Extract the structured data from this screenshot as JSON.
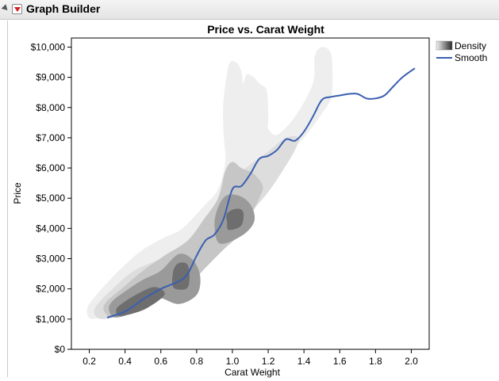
{
  "window": {
    "title": "Graph Builder"
  },
  "chart_data": {
    "type": "scatter",
    "title": "Price vs. Carat Weight",
    "xlabel": "Carat Weight",
    "ylabel": "Price",
    "xlim": [
      0.1,
      2.1
    ],
    "ylim": [
      0,
      10300
    ],
    "x_ticks": [
      "0.2",
      "0.4",
      "0.6",
      "0.8",
      "1.0",
      "1.2",
      "1.4",
      "1.6",
      "1.8",
      "2.0"
    ],
    "y_ticks": [
      "$0",
      "$1,000",
      "$2,000",
      "$3,000",
      "$4,000",
      "$5,000",
      "$6,000",
      "$7,000",
      "$8,000",
      "$9,000",
      "$10,000"
    ],
    "legend": {
      "placement": "right",
      "density_label": "Density",
      "smooth_label": "Smooth"
    },
    "colors": {
      "smooth": "#3a5fb0",
      "density_levels": [
        "#eeeeee",
        "#dddddd",
        "#c6c6c6",
        "#9a9a9a",
        "#6e6e6e",
        "#3a3a3a"
      ]
    },
    "series": [
      {
        "name": "Smooth",
        "kind": "line",
        "x": [
          0.3,
          0.4,
          0.5,
          0.6,
          0.7,
          0.75,
          0.8,
          0.85,
          0.9,
          0.95,
          1.0,
          1.05,
          1.1,
          1.15,
          1.2,
          1.25,
          1.3,
          1.35,
          1.4,
          1.45,
          1.5,
          1.55,
          1.6,
          1.65,
          1.7,
          1.75,
          1.8,
          1.85,
          1.9,
          1.95,
          2.02
        ],
        "y": [
          1050,
          1250,
          1650,
          2000,
          2250,
          2500,
          3100,
          3600,
          3800,
          4300,
          5300,
          5400,
          5800,
          6300,
          6400,
          6600,
          6950,
          6900,
          7200,
          7700,
          8250,
          8350,
          8400,
          8450,
          8450,
          8300,
          8300,
          8400,
          8700,
          9000,
          9300
        ]
      },
      {
        "name": "Density",
        "kind": "contour",
        "levels": [
          {
            "level": 1,
            "outline": [
              [
                0.22,
                1000
              ],
              [
                0.32,
                1150
              ],
              [
                0.42,
                1500
              ],
              [
                0.55,
                2150
              ],
              [
                0.7,
                2800
              ],
              [
                0.85,
                3700
              ],
              [
                1.0,
                4800
              ],
              [
                1.1,
                5400
              ],
              [
                1.2,
                6000
              ],
              [
                1.3,
                6500
              ],
              [
                1.4,
                7000
              ],
              [
                1.5,
                7800
              ],
              [
                1.55,
                8300
              ],
              [
                1.56,
                9000
              ],
              [
                1.55,
                9800
              ],
              [
                1.5,
                10000
              ],
              [
                1.46,
                9700
              ],
              [
                1.45,
                8800
              ],
              [
                1.35,
                7700
              ],
              [
                1.25,
                7100
              ],
              [
                1.2,
                7300
              ],
              [
                1.2,
                7500
              ],
              [
                1.2,
                7950
              ],
              [
                1.19,
                8600
              ],
              [
                1.15,
                8800
              ],
              [
                1.12,
                9000
              ],
              [
                1.08,
                9100
              ],
              [
                1.06,
                8800
              ],
              [
                1.05,
                9200
              ],
              [
                1.02,
                9500
              ],
              [
                0.98,
                9400
              ],
              [
                0.95,
                8200
              ],
              [
                0.95,
                7200
              ],
              [
                0.96,
                6200
              ],
              [
                0.92,
                5300
              ],
              [
                0.85,
                4800
              ],
              [
                0.72,
                4000
              ],
              [
                0.62,
                3700
              ],
              [
                0.5,
                3300
              ],
              [
                0.4,
                2800
              ],
              [
                0.3,
                2200
              ],
              [
                0.2,
                1500
              ],
              [
                0.19,
                1150
              ]
            ]
          },
          {
            "level": 2,
            "outline": [
              [
                0.28,
                1000
              ],
              [
                0.4,
                1200
              ],
              [
                0.6,
                1900
              ],
              [
                0.75,
                2450
              ],
              [
                0.88,
                3000
              ],
              [
                1.0,
                3700
              ],
              [
                1.1,
                4500
              ],
              [
                1.2,
                5200
              ],
              [
                1.28,
                5900
              ],
              [
                1.35,
                6600
              ],
              [
                1.37,
                7000
              ],
              [
                1.3,
                7000
              ],
              [
                1.2,
                6550
              ],
              [
                1.12,
                6200
              ],
              [
                1.02,
                5700
              ],
              [
                0.95,
                5000
              ],
              [
                0.85,
                4300
              ],
              [
                0.72,
                3400
              ],
              [
                0.6,
                3000
              ],
              [
                0.45,
                2600
              ],
              [
                0.33,
                2000
              ],
              [
                0.24,
                1450
              ],
              [
                0.23,
                1150
              ]
            ]
          },
          {
            "level": 3,
            "outline": [
              [
                0.33,
                1050
              ],
              [
                0.45,
                1250
              ],
              [
                0.6,
                1700
              ],
              [
                0.75,
                2100
              ],
              [
                0.85,
                2700
              ],
              [
                0.95,
                3300
              ],
              [
                1.05,
                3850
              ],
              [
                1.1,
                4400
              ],
              [
                1.15,
                5000
              ],
              [
                1.17,
                5400
              ],
              [
                1.12,
                5800
              ],
              [
                1.05,
                6000
              ],
              [
                1.0,
                6200
              ],
              [
                0.96,
                5900
              ],
              [
                0.92,
                5000
              ],
              [
                0.84,
                4300
              ],
              [
                0.75,
                3600
              ],
              [
                0.62,
                3100
              ],
              [
                0.5,
                2600
              ],
              [
                0.38,
                2000
              ],
              [
                0.3,
                1600
              ],
              [
                0.28,
                1300
              ]
            ]
          },
          {
            "level": 4,
            "outline": [
              [
                0.35,
                1050
              ],
              [
                0.48,
                1300
              ],
              [
                0.58,
                1700
              ],
              [
                0.7,
                1500
              ],
              [
                0.8,
                1800
              ],
              [
                0.82,
                2400
              ],
              [
                0.78,
                2950
              ],
              [
                0.7,
                3150
              ],
              [
                0.6,
                2600
              ],
              [
                0.5,
                2300
              ],
              [
                0.42,
                2000
              ],
              [
                0.33,
                1600
              ],
              [
                0.31,
                1300
              ]
            ]
          },
          {
            "level": 4,
            "outline": [
              [
                0.93,
                3500
              ],
              [
                1.05,
                3750
              ],
              [
                1.12,
                4200
              ],
              [
                1.11,
                4700
              ],
              [
                1.05,
                5050
              ],
              [
                0.97,
                5100
              ],
              [
                0.92,
                4700
              ],
              [
                0.9,
                4100
              ]
            ]
          },
          {
            "level": 5,
            "outline": [
              [
                0.37,
                1100
              ],
              [
                0.48,
                1250
              ],
              [
                0.56,
                1500
              ],
              [
                0.62,
                1800
              ],
              [
                0.6,
                2000
              ],
              [
                0.55,
                2050
              ],
              [
                0.46,
                1800
              ],
              [
                0.38,
                1500
              ],
              [
                0.35,
                1300
              ]
            ]
          },
          {
            "level": 5,
            "outline": [
              [
                0.67,
                2050
              ],
              [
                0.74,
                2000
              ],
              [
                0.76,
                2300
              ],
              [
                0.75,
                2800
              ],
              [
                0.7,
                2850
              ],
              [
                0.67,
                2600
              ]
            ]
          },
          {
            "level": 5,
            "outline": [
              [
                0.98,
                3950
              ],
              [
                1.05,
                4100
              ],
              [
                1.06,
                4550
              ],
              [
                1.02,
                4650
              ],
              [
                0.97,
                4500
              ],
              [
                0.97,
                4200
              ]
            ]
          }
        ]
      }
    ]
  }
}
